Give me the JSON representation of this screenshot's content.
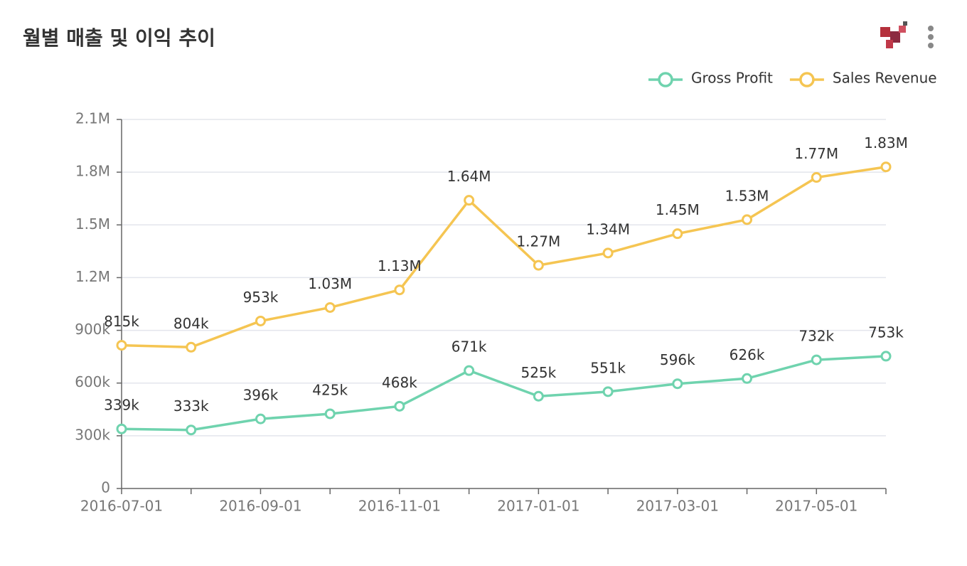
{
  "chart_data": {
    "type": "line",
    "title": "월별 매출 및 이익 추이",
    "categories": [
      "2016-07-01",
      null,
      "2016-09-01",
      null,
      "2016-11-01",
      null,
      "2017-01-01",
      null,
      "2017-03-01",
      null,
      "2017-05-01",
      null
    ],
    "series": [
      {
        "name": "Gross Profit",
        "color": "#6fd3ae",
        "values": [
          339000,
          333000,
          396000,
          425000,
          468000,
          671000,
          525000,
          551000,
          596000,
          626000,
          732000,
          753000
        ],
        "value_labels": [
          "339k",
          "333k",
          "396k",
          "425k",
          "468k",
          "671k",
          "525k",
          "551k",
          "596k",
          "626k",
          "732k",
          "753k"
        ]
      },
      {
        "name": "Sales Revenue",
        "color": "#f5c552",
        "values": [
          815000,
          804000,
          953000,
          1030000,
          1130000,
          1640000,
          1270000,
          1340000,
          1450000,
          1530000,
          1770000,
          1830000
        ],
        "value_labels": [
          "815k",
          "804k",
          "953k",
          "1.03M",
          "1.13M",
          "1.64M",
          "1.27M",
          "1.34M",
          "1.45M",
          "1.53M",
          "1.77M",
          "1.83M"
        ]
      }
    ],
    "ylim": [
      0,
      2100000
    ],
    "yticks": [
      0,
      {
        "value": 300000,
        "label": "300k"
      },
      {
        "value": 600000,
        "label": "600k"
      },
      {
        "value": 900000,
        "label": "900k"
      },
      {
        "value": 1200000,
        "label": "1.2M"
      },
      {
        "value": 1500000,
        "label": "1.5M"
      },
      {
        "value": 1800000,
        "label": "1.8M"
      },
      {
        "value": 2100000,
        "label": "2.1M"
      }
    ],
    "grid": true,
    "legend": "top-right"
  }
}
